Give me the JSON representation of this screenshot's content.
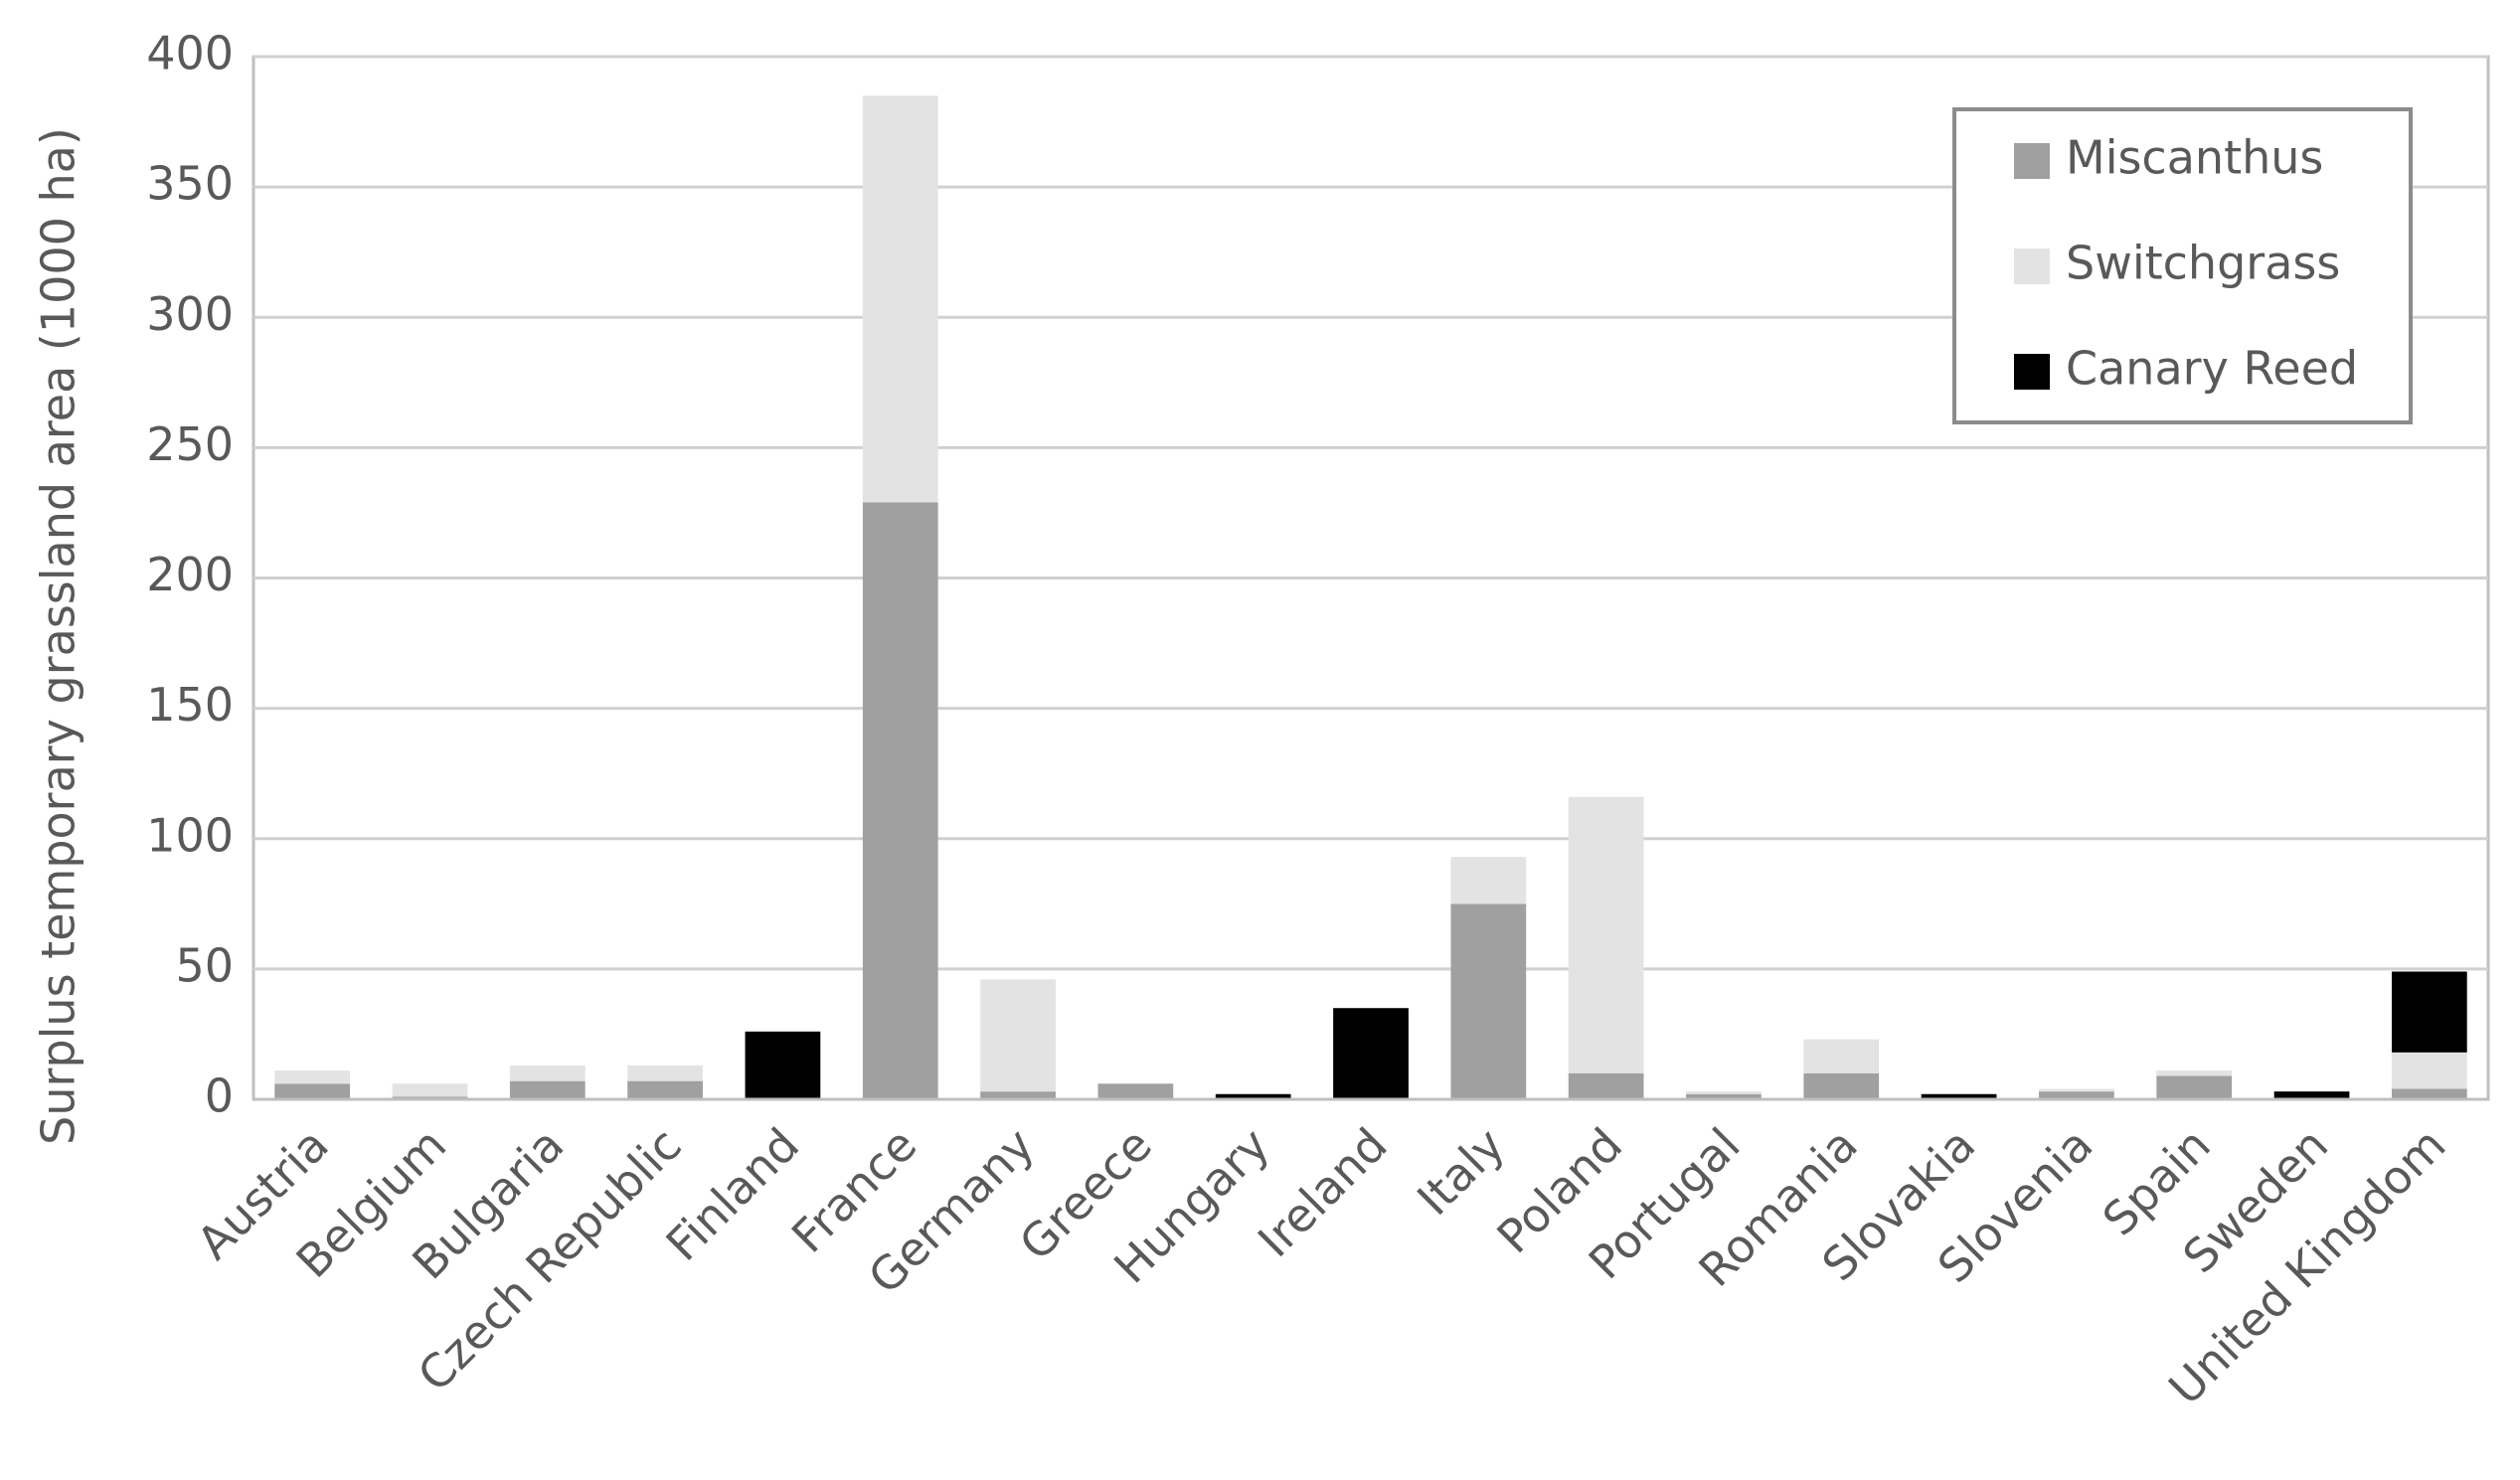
{
  "chart_data": {
    "type": "stacked-bar",
    "y_label": "Surplus temporary grassland area (1000 ha)",
    "categories": [
      "Austria",
      "Belgium",
      "Bulgaria",
      "Czech Republic",
      "Finland",
      "France",
      "Germany",
      "Greece",
      "Hungary",
      "Ireland",
      "Italy",
      "Poland",
      "Portugal",
      "Romania",
      "Slovakia",
      "Slovenia",
      "Spain",
      "Sweden",
      "United Kingdom"
    ],
    "series": [
      {
        "name": "Miscanthus",
        "color": "#a0a0a0",
        "values": [
          6,
          1,
          7,
          7,
          0,
          229,
          3,
          6,
          0,
          0,
          75,
          10,
          2,
          10,
          0,
          3,
          9,
          0,
          4
        ]
      },
      {
        "name": "Switchgrass",
        "color": "#e3e3e3",
        "values": [
          5,
          5,
          6,
          6,
          0,
          156,
          43,
          0,
          0,
          0,
          18,
          106,
          1,
          13,
          0,
          1,
          2,
          0,
          14
        ]
      },
      {
        "name": "Canary Reed",
        "color": "#000000",
        "values": [
          0,
          0,
          0,
          0,
          26,
          0,
          0,
          0,
          2,
          35,
          0,
          0,
          0,
          0,
          2,
          0,
          0,
          3,
          31
        ]
      }
    ],
    "ylim": [
      0,
      400
    ],
    "yticks": [
      0,
      50,
      100,
      150,
      200,
      250,
      300,
      350,
      400
    ],
    "grid": true,
    "legend": "top-right"
  }
}
